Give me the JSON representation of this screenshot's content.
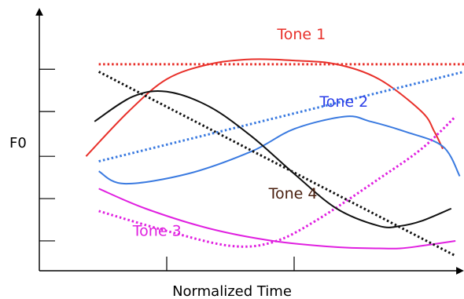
{
  "chart_data": {
    "type": "line",
    "title": "",
    "xlabel": "Normalized Time",
    "ylabel": "F0",
    "xlim": [
      0,
      10
    ],
    "ylim": [
      0,
      10
    ],
    "grid": false,
    "series": [
      {
        "name": "Tone 1",
        "color": "#e8302a",
        "dotted_color": "#e8302a",
        "solid": [
          [
            1.1,
            4.6
          ],
          [
            2.1,
            6.4
          ],
          [
            3.0,
            7.7
          ],
          [
            4.0,
            8.3
          ],
          [
            5.0,
            8.5
          ],
          [
            6.0,
            8.45
          ],
          [
            7.0,
            8.3
          ],
          [
            8.0,
            7.7
          ],
          [
            9.0,
            6.4
          ],
          [
            9.3,
            5.6
          ],
          [
            9.5,
            4.9
          ]
        ],
        "dotted": [
          [
            1.4,
            8.3
          ],
          [
            10.0,
            8.3
          ]
        ],
        "label_pos": [
          5.6,
          9.3
        ],
        "label_color": "#e8302a"
      },
      {
        "name": "Tone 2",
        "color": "#3a7ae0",
        "dotted_color": "#3a7ae0",
        "solid": [
          [
            1.4,
            4.0
          ],
          [
            2.0,
            3.5
          ],
          [
            3.5,
            3.9
          ],
          [
            5.0,
            4.8
          ],
          [
            6.0,
            5.7
          ],
          [
            7.2,
            6.2
          ],
          [
            7.8,
            6.0
          ],
          [
            8.6,
            5.6
          ],
          [
            9.5,
            5.0
          ],
          [
            9.9,
            3.8
          ]
        ],
        "dotted": [
          [
            1.4,
            4.4
          ],
          [
            10.0,
            8.0
          ]
        ],
        "label_pos": [
          6.6,
          6.6
        ],
        "label_color": "#2a3ee8"
      },
      {
        "name": "Tone 3",
        "color": "#e020e0",
        "dotted_color": "#e020e0",
        "solid": [
          [
            1.4,
            3.3
          ],
          [
            2.5,
            2.5
          ],
          [
            4.0,
            1.7
          ],
          [
            5.5,
            1.2
          ],
          [
            7.0,
            0.95
          ],
          [
            8.0,
            0.9
          ],
          [
            8.5,
            0.9
          ],
          [
            9.0,
            1.0
          ],
          [
            9.8,
            1.2
          ]
        ],
        "dotted": [
          [
            1.4,
            2.4
          ],
          [
            3.0,
            1.6
          ],
          [
            4.5,
            1.0
          ],
          [
            5.5,
            1.15
          ],
          [
            6.5,
            2.0
          ],
          [
            8.0,
            3.7
          ],
          [
            9.0,
            4.9
          ],
          [
            9.8,
            6.2
          ]
        ],
        "label_pos": [
          2.2,
          1.4
        ],
        "label_color": "#e020e0"
      },
      {
        "name": "Tone 4",
        "color": "#111111",
        "dotted_color": "#111111",
        "solid": [
          [
            1.3,
            6.0
          ],
          [
            2.2,
            7.0
          ],
          [
            3.0,
            7.2
          ],
          [
            4.0,
            6.6
          ],
          [
            5.0,
            5.4
          ],
          [
            6.0,
            3.9
          ],
          [
            7.0,
            2.5
          ],
          [
            8.0,
            1.8
          ],
          [
            8.5,
            1.8
          ],
          [
            9.0,
            2.0
          ],
          [
            9.7,
            2.5
          ]
        ],
        "dotted": [
          [
            1.4,
            8.0
          ],
          [
            9.8,
            0.6
          ]
        ],
        "label_pos": [
          5.4,
          2.9
        ],
        "label_color": "#4a2010"
      }
    ]
  }
}
